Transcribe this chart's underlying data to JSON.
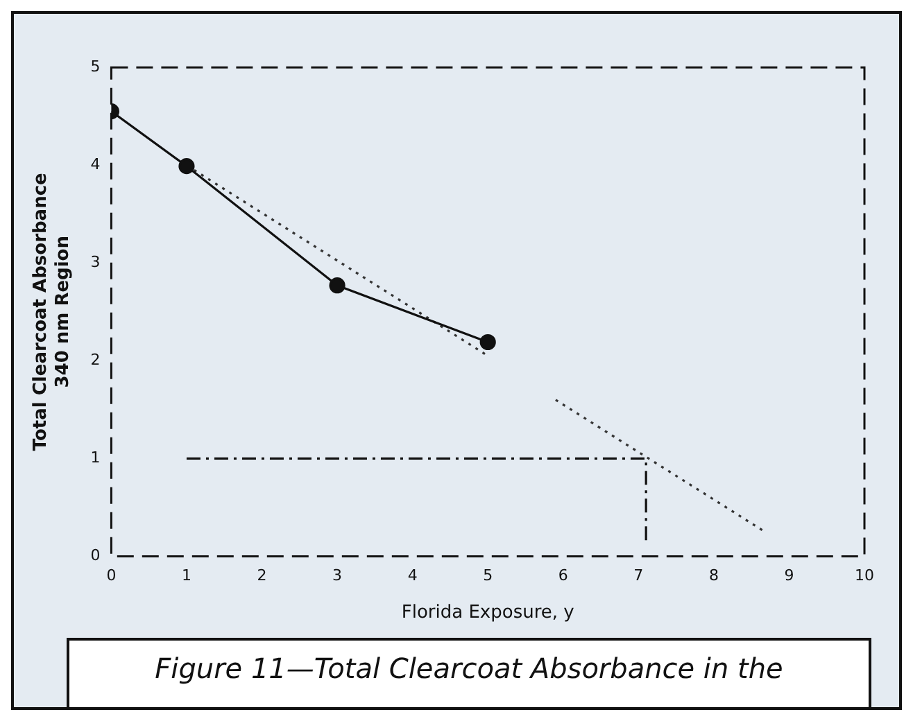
{
  "chart_data": {
    "type": "line",
    "xlabel": "Florida Exposure, y",
    "ylabel": "Total Clearcoat Absorbance\n340 nm Region",
    "xlim": [
      0,
      10
    ],
    "xticks": [
      0,
      1,
      2,
      3,
      4,
      5,
      6,
      7,
      8,
      9,
      10
    ],
    "ylim": [
      0,
      5
    ],
    "yticks": [
      0,
      1,
      2,
      3,
      4,
      5
    ],
    "series": [
      {
        "color": "#111111",
        "x": [
          0,
          1,
          3,
          5
        ],
        "values": [
          4.55,
          3.99,
          2.77,
          2.19
        ],
        "marker": "circle",
        "line_style": "solid"
      },
      {
        "type": "line",
        "color": "#333333",
        "x": [
          1.1,
          5,
          5.5,
          5.9,
          8.7
        ],
        "values": [
          3.95,
          2.05,
          null,
          1.6,
          0.24
        ],
        "marker": "none",
        "line_style": "dotted"
      },
      {
        "type": "line",
        "color": "#111111",
        "x": [
          1,
          7.1,
          7.1
        ],
        "values": [
          1,
          1,
          0.15
        ],
        "marker": "none",
        "line_style": "dashed"
      }
    ],
    "grid": false,
    "legend": false,
    "annotations": [
      "Figure 11—Total Clearcoat Absorbance in the"
    ]
  }
}
